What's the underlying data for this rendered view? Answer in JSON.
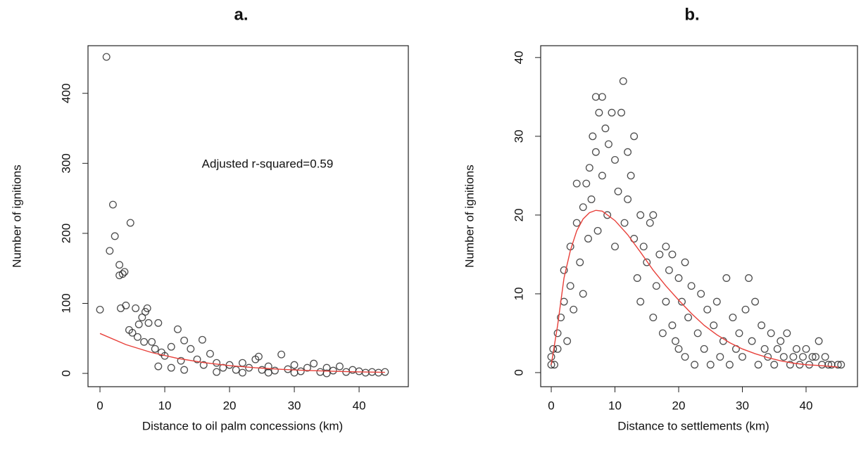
{
  "chart_data": [
    {
      "type": "scatter",
      "title": "a.",
      "x_label": "Distance to oil palm concessions (km)",
      "y_label": "Number of ignitions",
      "annotation": "Adjusted r-squared=0.59",
      "color": "#222222",
      "x": [
        0,
        1,
        1.5,
        2,
        2.3,
        3,
        3,
        3.5,
        3.8,
        4,
        3.2,
        4.7,
        4.5,
        5,
        5.5,
        5.8,
        6,
        6.5,
        7,
        7.3,
        7.5,
        6.8,
        8,
        8.5,
        9,
        9.5,
        10,
        11,
        12,
        12.5,
        13,
        14,
        15,
        15.8,
        16,
        17,
        18,
        19,
        20,
        21,
        22,
        23,
        24,
        24.5,
        25,
        26,
        27,
        28,
        29,
        30,
        31,
        32,
        33,
        34,
        35,
        36,
        37,
        38,
        39,
        40,
        41,
        42,
        43,
        44,
        9,
        11,
        13,
        18,
        22,
        26,
        30,
        35
      ],
      "values": [
        91,
        452,
        175,
        241,
        196,
        155,
        140,
        142,
        145,
        97,
        93,
        215,
        62,
        58,
        93,
        52,
        70,
        80,
        88,
        93,
        72,
        45,
        45,
        35,
        72,
        30,
        25,
        38,
        63,
        18,
        47,
        35,
        20,
        48,
        12,
        28,
        15,
        8,
        12,
        5,
        15,
        8,
        20,
        24,
        5,
        10,
        4,
        27,
        6,
        12,
        3,
        8,
        14,
        2,
        8,
        4,
        10,
        2,
        5,
        3,
        1,
        2,
        1,
        2,
        10,
        8,
        5,
        2,
        1,
        1,
        1,
        0
      ],
      "fit_color": "#e8403a",
      "fit_x": [
        0,
        4,
        8,
        12,
        16,
        20,
        24,
        28,
        32,
        36,
        40,
        44
      ],
      "fit_values": [
        57,
        41.1,
        29.7,
        21.4,
        15.4,
        11.1,
        8.0,
        5.8,
        4.2,
        3.0,
        2.1,
        1.5
      ],
      "xlim": [
        -1.85,
        47.6
      ],
      "ylim": [
        -19,
        468
      ],
      "xticks": [
        0,
        10,
        20,
        30,
        40
      ],
      "yticks": [
        0,
        100,
        200,
        300,
        400
      ]
    },
    {
      "type": "scatter",
      "title": "b.",
      "x_label": "Distance to settlements (km)",
      "y_label": "Number of ignitions",
      "color": "#222222",
      "x": [
        0,
        0,
        0.3,
        0.5,
        1,
        1,
        1.5,
        2,
        2,
        2.5,
        3,
        3,
        3.5,
        4,
        4,
        4.5,
        5,
        5,
        5.5,
        5.8,
        6,
        6.3,
        6.5,
        7,
        7,
        7.3,
        7.5,
        8,
        8,
        8.5,
        8.8,
        9,
        9.5,
        10,
        10,
        10.5,
        11,
        11.3,
        11.5,
        12,
        12,
        12.5,
        13,
        13,
        13.5,
        14,
        14,
        14.5,
        15,
        15.5,
        16,
        16,
        16.5,
        17,
        17.5,
        18,
        18,
        18.5,
        19,
        19,
        19.5,
        20,
        20,
        20.5,
        21,
        21,
        21.5,
        22,
        22.5,
        23,
        23.5,
        24,
        24.5,
        25,
        25.5,
        26,
        26.5,
        27,
        27.5,
        28,
        28.5,
        29,
        29.5,
        30,
        30.5,
        31,
        31.5,
        32,
        32.5,
        33,
        33.5,
        34,
        34.5,
        35,
        35.5,
        36,
        36.5,
        37,
        37.5,
        38,
        38.5,
        39,
        39.5,
        40,
        40.5,
        41,
        41.5,
        42,
        42.5,
        43,
        43.5,
        44,
        45,
        45.5
      ],
      "values": [
        1,
        2,
        3,
        1,
        5,
        3,
        7,
        9,
        13,
        4,
        11,
        16,
        8,
        19,
        24,
        14,
        21,
        10,
        24,
        17,
        26,
        22,
        30,
        28,
        35,
        18,
        33,
        35,
        25,
        31,
        20,
        29,
        33,
        27,
        16,
        23,
        33,
        37,
        19,
        28,
        22,
        25,
        30,
        17,
        12,
        20,
        9,
        16,
        14,
        19,
        20,
        7,
        11,
        15,
        5,
        9,
        16,
        13,
        15,
        6,
        4,
        12,
        3,
        9,
        14,
        2,
        7,
        11,
        1,
        5,
        10,
        3,
        8,
        1,
        6,
        9,
        2,
        4,
        12,
        1,
        7,
        3,
        5,
        2,
        8,
        12,
        4,
        9,
        1,
        6,
        3,
        2,
        5,
        1,
        3,
        4,
        2,
        5,
        1,
        2,
        3,
        1,
        2,
        3,
        1,
        2,
        2,
        4,
        1,
        2,
        1,
        1,
        1,
        1
      ],
      "fit_color": "#e8403a",
      "fit_x": [
        0,
        1,
        2,
        3,
        4,
        5,
        6,
        7,
        8,
        10,
        12,
        14,
        16,
        18,
        20,
        22,
        24,
        26,
        28,
        30,
        32,
        34,
        36,
        38,
        40,
        42,
        45
      ],
      "fit_values": [
        1,
        6,
        12,
        15.5,
        18,
        19.5,
        20.3,
        20.6,
        20.5,
        19.3,
        17.5,
        15.3,
        13,
        11,
        9.2,
        7.5,
        6,
        4.8,
        3.8,
        3,
        2.4,
        1.9,
        1.5,
        1.2,
        1,
        0.9,
        0.7
      ],
      "xlim": [
        -1.66,
        48.07
      ],
      "ylim": [
        -1.79,
        41.5
      ],
      "xticks": [
        0,
        10,
        20,
        30,
        40
      ],
      "yticks": [
        0,
        10,
        20,
        30,
        40
      ]
    }
  ]
}
